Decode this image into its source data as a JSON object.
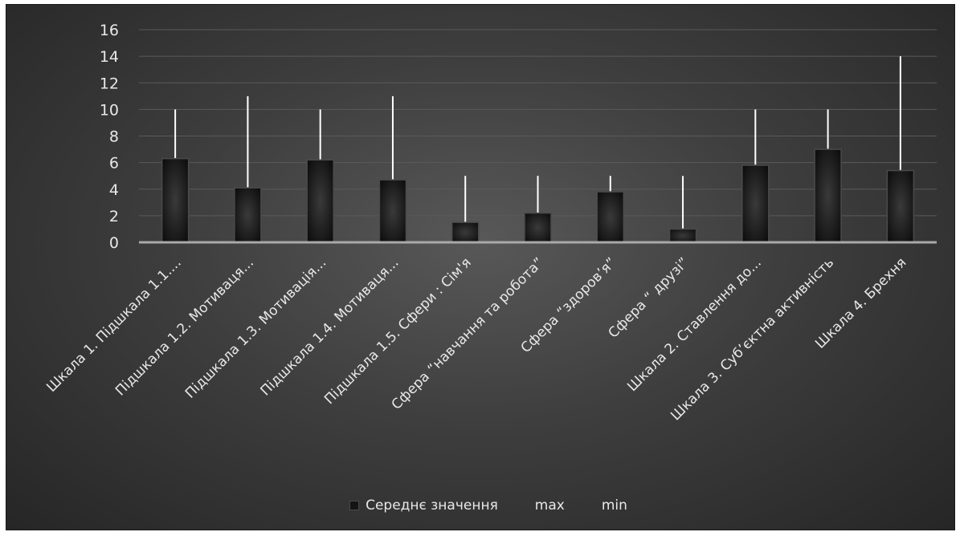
{
  "chart_data": {
    "type": "bar",
    "categories": [
      "Шкала 1. Підшкала 1.1....",
      "Підшкала 1.2. Мотиваця...",
      "Підшкала 1.3. Мотивація...",
      "Підшкала 1.4. Мотиваця...",
      "Підшкала 1.5. Сфери : Сім'я",
      "Сфера “навчання та робота”",
      "Сфера “здоров’я”",
      "Сфера “ друзі”",
      "Шкала 2. Ставлення до...",
      "Шкала 3. Суб’єктна активність",
      "Шкала 4. Брехня"
    ],
    "series": [
      {
        "name": "Середнє значення",
        "values": [
          6.3,
          4.1,
          6.2,
          4.7,
          1.5,
          2.2,
          3.8,
          1.0,
          5.8,
          7.0,
          5.4
        ]
      },
      {
        "name": "max",
        "values": [
          10,
          11,
          10,
          11,
          5,
          5,
          5,
          5,
          10,
          10,
          14
        ]
      },
      {
        "name": "min",
        "values": [
          0,
          0,
          0,
          0,
          0,
          0,
          0,
          0,
          0,
          0,
          0
        ]
      }
    ],
    "yticks": [
      0,
      2,
      4,
      6,
      8,
      10,
      12,
      14,
      16
    ],
    "ylim": [
      0,
      16
    ],
    "grid": true,
    "legend_position": "bottom",
    "colors": {
      "bar_fill": "#141414",
      "bar_stroke": "#4a4a4a",
      "max_line": "#ffffff",
      "axis_line": "#a9a9a9",
      "gridline": "#5a5a5a",
      "text": "#e8e8e8"
    }
  }
}
